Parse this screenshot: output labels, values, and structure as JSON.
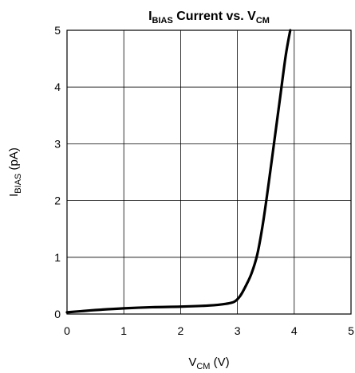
{
  "chart_data": {
    "type": "line",
    "title": {
      "main": "I",
      "main_sub": "BIAS",
      "mid": " Current vs. V",
      "end_sub": "CM"
    },
    "xlabel": {
      "main": "V",
      "sub": "CM",
      "suffix": " (V)"
    },
    "ylabel": {
      "main": "I",
      "sub": "BIAS",
      "suffix": " (pA)"
    },
    "xlim": [
      0,
      5
    ],
    "ylim": [
      0,
      5
    ],
    "x_ticks": [
      "0",
      "1",
      "2",
      "3",
      "4",
      "5"
    ],
    "y_ticks": [
      "0",
      "1",
      "2",
      "3",
      "4",
      "5"
    ],
    "grid": true,
    "series": [
      {
        "color": "#000000",
        "x": [
          0.0,
          0.25,
          0.5,
          1.0,
          1.5,
          2.0,
          2.5,
          2.8,
          2.95,
          3.05,
          3.15,
          3.25,
          3.35,
          3.45,
          3.55,
          3.65,
          3.75,
          3.85,
          3.93
        ],
        "y": [
          0.03,
          0.05,
          0.07,
          0.1,
          0.12,
          0.13,
          0.15,
          0.18,
          0.22,
          0.32,
          0.5,
          0.72,
          1.05,
          1.6,
          2.3,
          3.05,
          3.8,
          4.55,
          5.0
        ]
      }
    ]
  }
}
